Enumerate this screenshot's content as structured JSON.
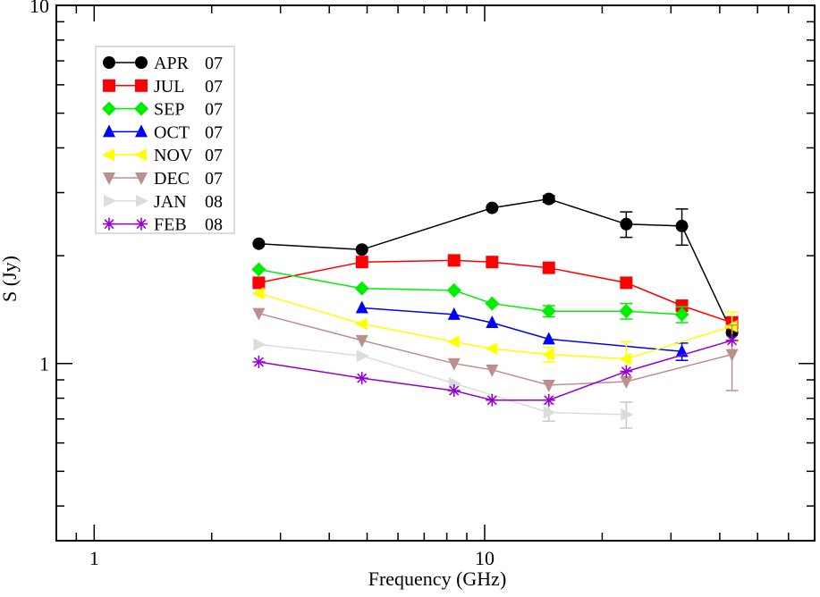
{
  "chart_data": {
    "type": "line",
    "title": "",
    "xlabel": "Frequency (GHz)",
    "ylabel": "S (Jy)",
    "xscale": "log",
    "yscale": "log",
    "xlim": [
      0.8,
      70
    ],
    "ylim": [
      0.32,
      10
    ],
    "x_tick_labels": [
      {
        "value": 1,
        "label": "1"
      },
      {
        "value": 10,
        "label": "10"
      }
    ],
    "y_tick_labels": [
      {
        "value": 1,
        "label": "1"
      },
      {
        "value": 10,
        "label": "10"
      }
    ],
    "legend_position": "top-left",
    "series": [
      {
        "name": "APR 07",
        "label_month": "APR",
        "label_year": "07",
        "color": "#000000",
        "marker": "circle",
        "x": [
          2.64,
          4.85,
          10.45,
          14.6,
          23.05,
          32,
          43
        ],
        "y": [
          2.16,
          2.08,
          2.72,
          2.88,
          2.45,
          2.42,
          1.22
        ],
        "err": [
          0,
          0,
          0,
          0.06,
          0.2,
          0.28,
          0
        ]
      },
      {
        "name": "JUL 07",
        "label_month": "JUL",
        "label_year": "07",
        "color": "#ff0000",
        "marker": "square",
        "x": [
          2.64,
          4.85,
          8.35,
          10.45,
          14.6,
          23.05,
          32,
          43
        ],
        "y": [
          1.68,
          1.92,
          1.94,
          1.92,
          1.85,
          1.68,
          1.45,
          1.3
        ],
        "err": [
          0,
          0,
          0,
          0,
          0,
          0,
          0,
          0.05
        ]
      },
      {
        "name": "SEP 07",
        "label_month": "SEP",
        "label_year": "07",
        "color": "#00ee00",
        "marker": "diamond",
        "x": [
          2.64,
          4.85,
          8.35,
          10.45,
          14.6,
          23.05,
          32
        ],
        "y": [
          1.83,
          1.62,
          1.6,
          1.47,
          1.4,
          1.4,
          1.37
        ],
        "err": [
          0,
          0,
          0,
          0,
          0.05,
          0.07,
          0.07
        ]
      },
      {
        "name": "OCT 07",
        "label_month": "OCT",
        "label_year": "07",
        "color": "#0000ff",
        "marker": "triangle-up",
        "x": [
          4.85,
          8.35,
          10.45,
          14.6,
          32
        ],
        "y": [
          1.43,
          1.37,
          1.3,
          1.17,
          1.08
        ],
        "err": [
          0,
          0,
          0,
          0,
          0.06
        ]
      },
      {
        "name": "NOV 07",
        "label_month": "NOV",
        "label_year": "07",
        "color": "#ffff00",
        "marker": "triangle-left",
        "x": [
          2.64,
          4.85,
          8.35,
          10.45,
          14.6,
          23.05,
          43
        ],
        "y": [
          1.57,
          1.29,
          1.15,
          1.1,
          1.06,
          1.03,
          1.27
        ],
        "err": [
          0,
          0,
          0,
          0,
          0.05,
          0.12,
          0.12
        ]
      },
      {
        "name": "DEC 07",
        "label_month": "DEC",
        "label_year": "07",
        "color": "#bc8f8f",
        "marker": "triangle-down",
        "x": [
          2.64,
          4.85,
          8.35,
          10.45,
          14.6,
          23.05,
          43
        ],
        "y": [
          1.38,
          1.16,
          1.0,
          0.96,
          0.87,
          0.89,
          1.06
        ],
        "err": [
          0,
          0,
          0,
          0,
          0,
          0,
          0.22
        ]
      },
      {
        "name": "JAN 08",
        "label_month": "JAN",
        "label_year": "08",
        "color": "#dcdcdc",
        "marker": "triangle-right",
        "x": [
          2.64,
          4.85,
          8.35,
          14.6,
          23.05
        ],
        "y": [
          1.13,
          1.05,
          0.88,
          0.73,
          0.72
        ],
        "err": [
          0,
          0,
          0,
          0.04,
          0.06
        ]
      },
      {
        "name": "FEB 08",
        "label_month": "FEB",
        "label_year": "08",
        "color": "#9400d3",
        "marker": "asterisk",
        "x": [
          2.64,
          4.85,
          8.35,
          10.45,
          14.6,
          23.05,
          43
        ],
        "y": [
          1.01,
          0.91,
          0.84,
          0.79,
          0.79,
          0.95,
          1.16
        ],
        "err": [
          0,
          0,
          0,
          0,
          0,
          0,
          0
        ]
      }
    ]
  }
}
